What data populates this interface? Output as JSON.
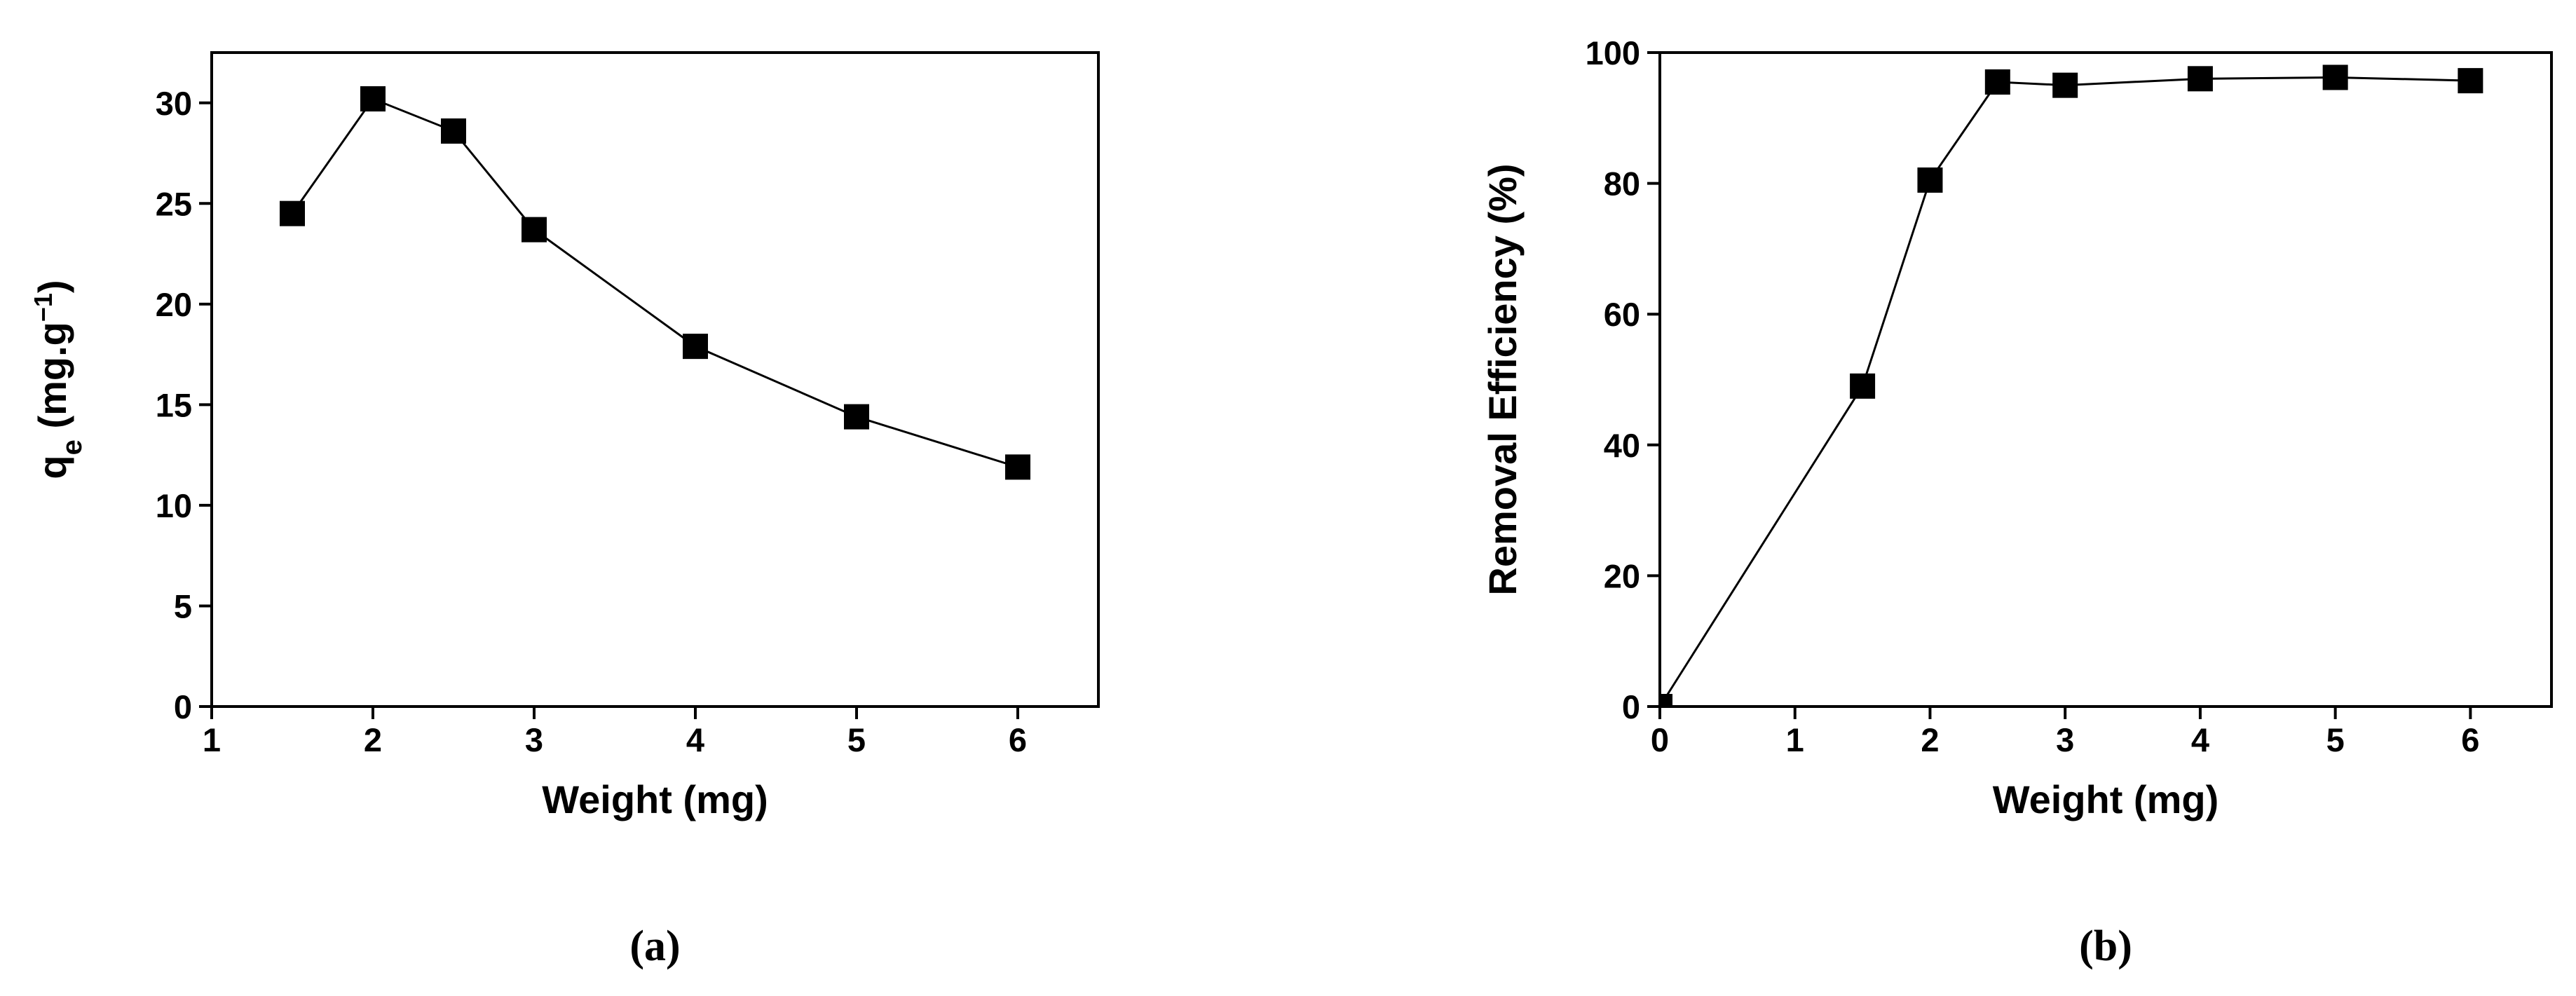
{
  "chart_data": [
    {
      "type": "line",
      "caption": "(a)",
      "x_label": "Weight (mg)",
      "y_label": [
        {
          "text": "q"
        },
        {
          "text": "e",
          "sub": true
        },
        {
          "text": " (mg.g"
        },
        {
          "text": "−1",
          "sup": true
        },
        {
          "text": ")"
        }
      ],
      "x": [
        1.5,
        2,
        2.5,
        3,
        4,
        5,
        6
      ],
      "series": [
        {
          "color": "#000000",
          "values": [
            24.5,
            30.2,
            28.6,
            23.7,
            17.9,
            14.4,
            11.9
          ]
        }
      ],
      "xlim": [
        1,
        6.5
      ],
      "xticks": [
        1,
        2,
        3,
        4,
        5,
        6
      ],
      "ylim": [
        0,
        32.5
      ],
      "yticks": [
        0,
        5,
        10,
        15,
        20,
        25,
        30
      ]
    },
    {
      "type": "line",
      "caption": "(b)",
      "x_label": "Weight (mg)",
      "y_label": [
        {
          "text": "Removal Efficiency (%)"
        }
      ],
      "x": [
        0,
        1.5,
        2,
        2.5,
        3,
        4,
        5,
        6
      ],
      "series": [
        {
          "color": "#000000",
          "values": [
            0,
            49,
            80.5,
            95.5,
            95,
            96,
            96.2,
            95.7
          ]
        }
      ],
      "xlim": [
        0,
        6.6
      ],
      "xticks": [
        0,
        1,
        2,
        3,
        4,
        5,
        6
      ],
      "ylim": [
        0,
        100
      ],
      "yticks": [
        0,
        20,
        40,
        60,
        80,
        100
      ]
    }
  ]
}
